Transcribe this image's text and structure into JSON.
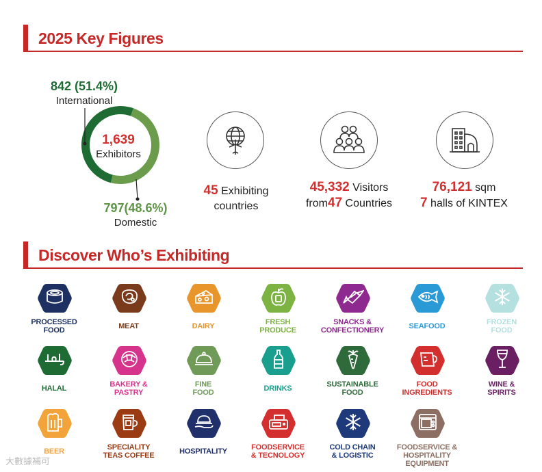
{
  "key_figures": {
    "title": "2025 Key Figures",
    "international_value": "842 (51.4%)",
    "international_label": "International",
    "total_value": "1,639",
    "total_label": "Exhibitors",
    "domestic_value": "797(48.6%)",
    "domestic_label": "Domestic",
    "international_share": 0.514,
    "colors": {
      "international": "#1f6b34",
      "domestic": "#6a9c4c",
      "accent": "#d32f2f"
    },
    "countries": {
      "icon": "globe-plane-icon",
      "number": "45",
      "label_1": "Exhibiting",
      "label_2": "countries"
    },
    "visitors": {
      "icon": "people-group-icon",
      "number": "45,332",
      "label_1": "Visitors",
      "prefix_2": "from",
      "number_2": "47",
      "label_2": "Countries"
    },
    "venue": {
      "icon": "building-icon",
      "number": "76,121",
      "label_1": "sqm",
      "number_2": "7",
      "label_2": "halls of KINTEX"
    }
  },
  "exhibiting": {
    "title": "Discover Who’s Exhibiting",
    "categories": [
      {
        "line1": "PROCESSED",
        "line2": "FOOD",
        "color": "#1e2f62",
        "icon": "canned-food-icon"
      },
      {
        "line1": "MEAT",
        "line2": "",
        "color": "#7a3b1c",
        "icon": "steak-icon"
      },
      {
        "line1": "DAIRY",
        "line2": "",
        "color": "#e8962c",
        "icon": "cheese-icon"
      },
      {
        "line1": "FRESH",
        "line2": "PRODUCE",
        "color": "#7cb342",
        "icon": "apple-icon"
      },
      {
        "line1": "SNACKS &",
        "line2": "CONFECTIONERY",
        "color": "#8e2a8f",
        "icon": "candy-icon"
      },
      {
        "line1": "SEAFOOD",
        "line2": "",
        "color": "#2a9ad6",
        "icon": "fish-icon"
      },
      {
        "line1": "FROZEN",
        "line2": "FOOD",
        "color": "#b4e0df",
        "icon": "snowflake-icon"
      },
      {
        "line1": "HALAL",
        "line2": "",
        "color": "#1f6b34",
        "icon": "halal-icon"
      },
      {
        "line1": "BAKERY &",
        "line2": "PASTRY",
        "color": "#d6338c",
        "icon": "croissant-icon"
      },
      {
        "line1": "FINE",
        "line2": "FOOD",
        "color": "#6f9a58",
        "icon": "cloche-icon"
      },
      {
        "line1": "DRINKS",
        "line2": "",
        "color": "#1a9e8e",
        "icon": "bottle-icon"
      },
      {
        "line1": "SUSTAINABLE",
        "line2": "FOOD",
        "color": "#2f6b3a",
        "icon": "carrot-icon"
      },
      {
        "line1": "FOOD",
        "line2": "INGREDIENTS",
        "color": "#d32f2f",
        "icon": "measuring-cup-icon"
      },
      {
        "line1": "WINE &",
        "line2": "SPIRITS",
        "color": "#6a1f63",
        "icon": "wine-glass-icon"
      },
      {
        "line1": "BEER",
        "line2": "",
        "color": "#f2a33a",
        "icon": "beer-mug-icon"
      },
      {
        "line1": "SPECIALITY",
        "line2": "TEAS COFFEE",
        "color": "#9a3b14",
        "icon": "coffee-cup-icon"
      },
      {
        "line1": "HOSPITALITY",
        "line2": "",
        "color": "#20306a",
        "icon": "serving-hand-icon"
      },
      {
        "line1": "FOODSERVICE",
        "line2": "& TECNOLOGY",
        "color": "#d32f2f",
        "icon": "pos-terminal-icon"
      },
      {
        "line1": "COLD CHAIN",
        "line2": "& LOGISTIC",
        "color": "#1e3a7a",
        "icon": "snowflake-icon"
      },
      {
        "line1": "FOODSERVICE &",
        "line2": "HOSPITALITY",
        "line3": "EQUIPMENT",
        "color": "#8d6e63",
        "icon": "oven-icon"
      }
    ]
  },
  "watermark": "大數據補可"
}
